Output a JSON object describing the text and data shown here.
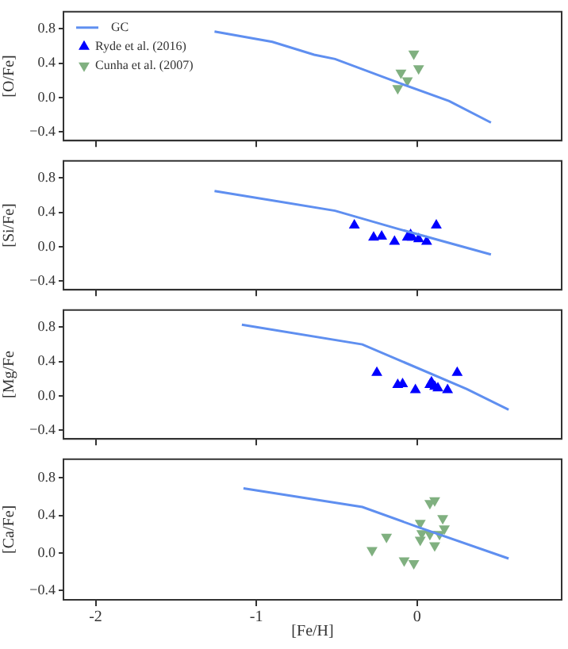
{
  "chart_data": [
    {
      "type": "scatter",
      "ylabel": "[O/Fe]",
      "xlim": [
        -2.2,
        0.9
      ],
      "xticks": [
        -2,
        -1,
        0
      ],
      "ylim": [
        -0.5,
        1.0
      ],
      "yticks": [
        {
          "value": -0.4,
          "label": "−0.4"
        },
        {
          "value": 0,
          "label": "0.0"
        },
        {
          "value": 0.4,
          "label": "0.4"
        },
        {
          "value": 0.8,
          "label": "0.8"
        }
      ],
      "tick_labels": "y",
      "legend": "top left",
      "series": [
        {
          "name": "GC",
          "type": "line",
          "color": "#5f8ff0",
          "marker": "none",
          "x": [
            -1.26,
            -0.9,
            -0.64,
            -0.51,
            -0.11,
            0.2,
            0.46
          ],
          "values": [
            0.77,
            0.65,
            0.5,
            0.45,
            0.17,
            -0.04,
            -0.29
          ]
        },
        {
          "name": "Ryde et al. (2016)",
          "color": "#0000ff",
          "marker": "triangle"
        },
        {
          "name": "Cunha et al. (2007)",
          "color": "#80b080",
          "marker": "triangle_down",
          "x": [
            -0.02,
            -0.1,
            0.01,
            -0.06,
            -0.12
          ],
          "values": [
            0.51,
            0.29,
            0.34,
            0.2,
            0.11
          ]
        }
      ]
    },
    {
      "type": "scatter",
      "ylabel": "[Si/Fe]",
      "xlim": [
        -2.2,
        0.9
      ],
      "xticks": [
        -2,
        -1,
        0
      ],
      "ylim": [
        -0.5,
        1.0
      ],
      "yticks": [
        {
          "value": -0.4,
          "label": "−0.4"
        },
        {
          "value": 0,
          "label": "0.0"
        },
        {
          "value": 0.4,
          "label": "0.4"
        },
        {
          "value": 0.8,
          "label": "0.8"
        }
      ],
      "tick_labels": "y",
      "series": [
        {
          "type": "line",
          "color": "#5f8ff0",
          "marker": "none",
          "x": [
            -1.26,
            -0.51,
            -0.12,
            0.46
          ],
          "values": [
            0.65,
            0.42,
            0.21,
            -0.09
          ]
        },
        {
          "color": "#0000ff",
          "marker": "triangle",
          "x": [
            -0.39,
            -0.27,
            -0.22,
            -0.14,
            -0.06,
            -0.04,
            -0.03,
            0.01,
            0.06,
            0.12
          ],
          "values": [
            0.25,
            0.11,
            0.12,
            0.06,
            0.11,
            0.14,
            0.11,
            0.09,
            0.06,
            0.25
          ]
        }
      ]
    },
    {
      "type": "scatter",
      "ylabel": "[Mg/Fe",
      "xlim": [
        -2.2,
        0.9
      ],
      "xticks": [
        -2,
        -1,
        0
      ],
      "ylim": [
        -0.5,
        1.0
      ],
      "yticks": [
        {
          "value": -0.4,
          "label": "−0.4"
        },
        {
          "value": 0,
          "label": "0.0"
        },
        {
          "value": 0.4,
          "label": "0.4"
        },
        {
          "value": 0.8,
          "label": "0.8"
        }
      ],
      "tick_labels": "y",
      "series": [
        {
          "type": "line",
          "color": "#5f8ff0",
          "marker": "none",
          "x": [
            -1.09,
            -0.34,
            0.31,
            0.57
          ],
          "values": [
            0.83,
            0.6,
            0.08,
            -0.16
          ]
        },
        {
          "color": "#0000ff",
          "marker": "triangle",
          "x": [
            -0.25,
            -0.12,
            -0.09,
            -0.01,
            0.08,
            0.09,
            0.11,
            0.13,
            0.19,
            0.25
          ],
          "values": [
            0.27,
            0.13,
            0.14,
            0.07,
            0.13,
            0.16,
            0.11,
            0.09,
            0.07,
            0.27
          ]
        }
      ]
    },
    {
      "type": "scatter",
      "xlabel": "[Fe/H]",
      "ylabel": "[Ca/Fe]",
      "xlim": [
        -2.2,
        0.9
      ],
      "xticks": [
        -2,
        -1,
        0
      ],
      "ylim": [
        -0.5,
        1.0
      ],
      "yticks": [
        {
          "value": -0.4,
          "label": "−0.4"
        },
        {
          "value": 0,
          "label": "0.0"
        },
        {
          "value": 0.4,
          "label": "0.4"
        },
        {
          "value": 0.8,
          "label": "0.8"
        }
      ],
      "series": [
        {
          "type": "line",
          "color": "#5f8ff0",
          "marker": "none",
          "x": [
            -1.08,
            -0.34,
            0,
            0.57
          ],
          "values": [
            0.69,
            0.49,
            0.28,
            -0.06
          ]
        },
        {
          "color": "#80b080",
          "marker": "triangle_down",
          "x": [
            -0.28,
            -0.19,
            -0.08,
            -0.02,
            0.02,
            0.03,
            0.02,
            0.08,
            0.11,
            0.08,
            0.11,
            0.14,
            0.16,
            0.17
          ],
          "values": [
            0.03,
            0.17,
            -0.08,
            -0.11,
            0.32,
            0.21,
            0.14,
            0.2,
            0.08,
            0.53,
            0.56,
            0.2,
            0.37,
            0.26
          ]
        }
      ]
    }
  ]
}
